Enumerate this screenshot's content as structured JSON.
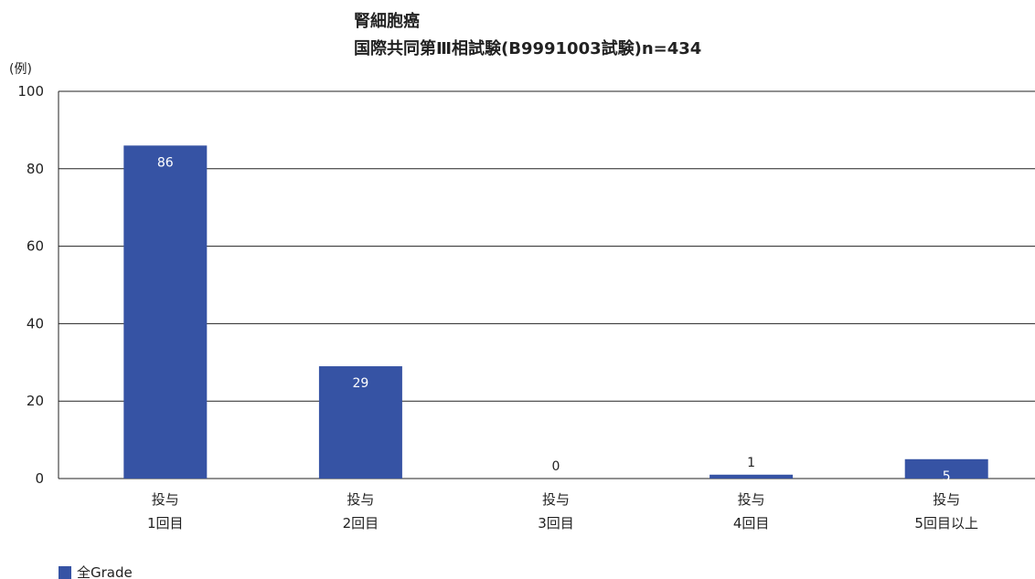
{
  "chart_data": {
    "type": "bar",
    "title": [
      "腎細胞癌",
      "国際共同第Ⅲ相試験(B9991003試験)n=434"
    ],
    "ylabel": "(例)",
    "ylim": [
      0,
      100
    ],
    "yticks": [
      0,
      20,
      40,
      60,
      80,
      100
    ],
    "categories": [
      [
        "投与",
        "1回目"
      ],
      [
        "投与",
        "2回目"
      ],
      [
        "投与",
        "3回目"
      ],
      [
        "投与",
        "4回目"
      ],
      [
        "投与",
        "5回目以上"
      ]
    ],
    "series": [
      {
        "name": "全Grade",
        "values": [
          86,
          29,
          0,
          1,
          5
        ]
      }
    ],
    "data_labels": [
      "86",
      "29",
      "0",
      "1",
      "5"
    ],
    "grid": true,
    "legend": "bottom-left",
    "colors": {
      "bar": "#3653a4",
      "grid": "#222222",
      "label_inside": "#ffffff",
      "label_outside": "#222222"
    }
  }
}
